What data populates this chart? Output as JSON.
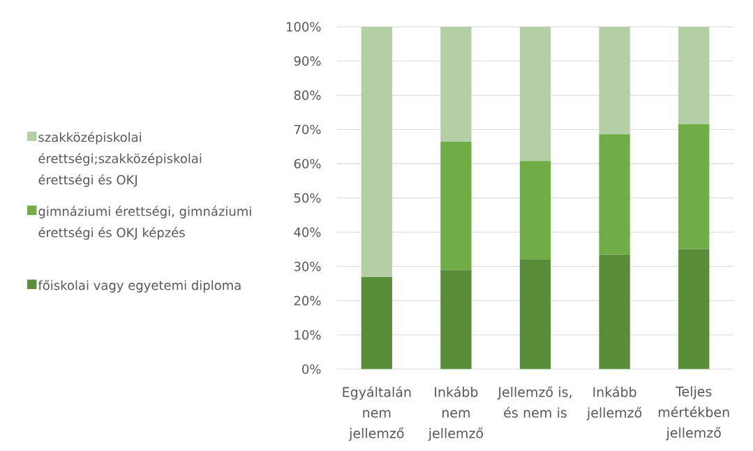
{
  "chart_data": {
    "type": "bar",
    "stacked": true,
    "categories": [
      "Egyáltalán nem jellemző",
      "Inkább nem jellemző",
      "Jellemző is, és nem is",
      "Inkább jellemző",
      "Teljes mértékben jellemző"
    ],
    "series": [
      {
        "name": "főiskolai vagy egyetemi diploma",
        "color": "#5a8d39",
        "values": [
          26.9,
          29.0,
          32.1,
          33.5,
          35.1
        ]
      },
      {
        "name": "gimnáziumi érettségi, gimnáziumi érettségi és OKJ képzés",
        "color": "#70ad47",
        "values": [
          0,
          37.4,
          28.7,
          35.1,
          36.4
        ]
      },
      {
        "name": "szakközépiskolai érettségi;szakközépiskolai érettségi és OKJ",
        "color": "#b4cea6",
        "values": [
          73.1,
          33.6,
          39.2,
          31.4,
          28.5
        ]
      }
    ],
    "ylim": [
      0,
      100
    ],
    "yticks": [
      {
        "value": 0,
        "label": "0%"
      },
      {
        "value": 10,
        "label": "10%"
      },
      {
        "value": 20,
        "label": "20%"
      },
      {
        "value": 30,
        "label": "30%"
      },
      {
        "value": 40,
        "label": "40%"
      },
      {
        "value": 50,
        "label": "50%"
      },
      {
        "value": 60,
        "label": "60%"
      },
      {
        "value": 70,
        "label": "70%"
      },
      {
        "value": 80,
        "label": "80%"
      },
      {
        "value": 90,
        "label": "90%"
      },
      {
        "value": 100,
        "label": "100%"
      }
    ],
    "grid": "y",
    "legend": "left"
  }
}
